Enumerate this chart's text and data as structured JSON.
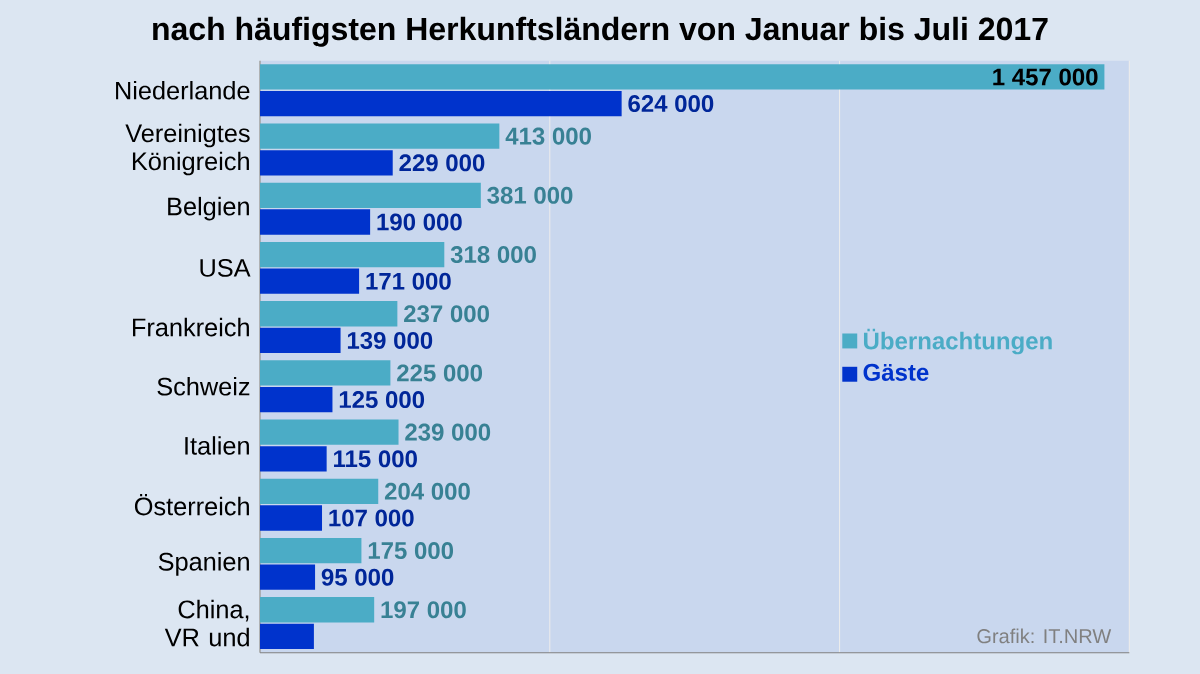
{
  "chart_data": {
    "type": "bar",
    "orientation": "horizontal",
    "title": "nach häufigsten Herkunftsländern von Januar bis Juli 2017",
    "categories": [
      "Niederlande",
      "Vereinigtes Königreich",
      "Belgien",
      "USA",
      "Frankreich",
      "Schweiz",
      "Italien",
      "Österreich",
      "Spanien",
      "China, VR und"
    ],
    "series": [
      {
        "name": "Übernachtungen",
        "color": "#4bacc6",
        "values": [
          1457000,
          413000,
          381000,
          318000,
          237000,
          225000,
          239000,
          204000,
          175000,
          197000
        ],
        "value_labels": [
          "1 457 000",
          "413 000",
          "381 000",
          "318 000",
          "237 000",
          "225 000",
          "239 000",
          "204 000",
          "175 000",
          "197 000"
        ]
      },
      {
        "name": "Gäste",
        "color": "#0033cc",
        "values": [
          624000,
          229000,
          190000,
          171000,
          139000,
          125000,
          115000,
          107000,
          95000,
          93000
        ],
        "value_labels": [
          "624 000",
          "229 000",
          "190 000",
          "171 000",
          "139 000",
          "125 000",
          "115 000",
          "107 000",
          "95 000",
          null
        ]
      }
    ],
    "xlim": [
      0,
      1500000
    ],
    "xticks": [
      {
        "value": 0,
        "label": null
      },
      {
        "value": 500000,
        "label": null
      },
      {
        "value": 1000000,
        "label": null
      },
      {
        "value": 1500000,
        "label": null
      }
    ],
    "tick_labels": "y",
    "grid": "x",
    "legend": "right",
    "annotations": [
      "Grafik: IT.NRW"
    ]
  }
}
